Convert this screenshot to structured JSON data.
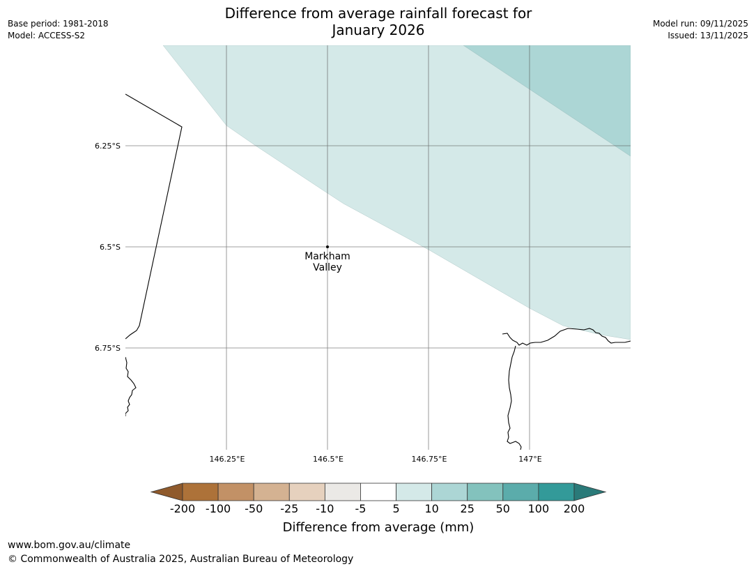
{
  "title": {
    "line1": "Difference from average rainfall forecast for",
    "line2": "January 2026"
  },
  "meta": {
    "base_period": "Base period: 1981-2018",
    "model": "Model: ACCESS-S2",
    "model_run": "Model run: 09/11/2025",
    "issued": "Issued: 13/11/2025"
  },
  "map": {
    "lat_labels": [
      "6.25°S",
      "6.5°S",
      "6.75°S"
    ],
    "lon_labels": [
      "146.25°E",
      "146.5°E",
      "146.75°E",
      "147°E"
    ],
    "place": {
      "line1": "Markham",
      "line2": "Valley",
      "lon": 146.5,
      "lat": -6.5
    },
    "category_colors": {
      "10": "#d4e9e8",
      "25": "#acd6d5"
    }
  },
  "colorbar": {
    "label": "Difference from average (mm)",
    "ticks": [
      "-200",
      "-100",
      "-50",
      "-25",
      "-10",
      "-5",
      "5",
      "10",
      "25",
      "50",
      "100",
      "200"
    ],
    "colors": [
      "#8f5a2c",
      "#ad7239",
      "#c29166",
      "#d4b292",
      "#e6d1be",
      "#ebe9e6",
      "#ffffff",
      "#d4e9e8",
      "#acd6d5",
      "#83c2bd",
      "#5bacab",
      "#339a99",
      "#2a7a79"
    ]
  },
  "footer": {
    "url": "www.bom.gov.au/climate",
    "copyright": "© Commonwealth of Australia 2025, Australian Bureau of Meteorology"
  }
}
